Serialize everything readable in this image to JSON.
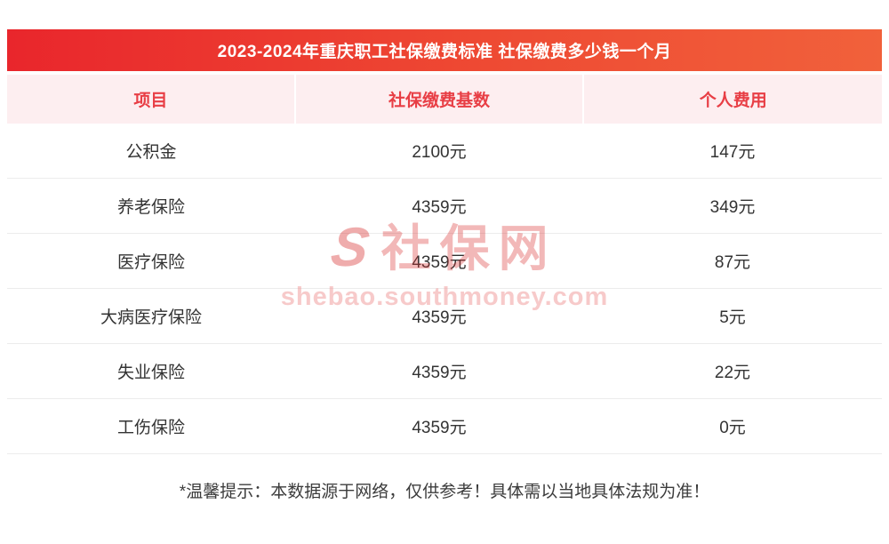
{
  "chart_data": {
    "type": "table",
    "title": "2023-2024年重庆职工社保缴费标准 社保缴费多少钱一个月",
    "columns": [
      "项目",
      "社保缴费基数",
      "个人费用"
    ],
    "rows": [
      [
        "公积金",
        "2100元",
        "147元"
      ],
      [
        "养老保险",
        "4359元",
        "349元"
      ],
      [
        "医疗保险",
        "4359元",
        "87元"
      ],
      [
        "大病医疗保险",
        "4359元",
        "5元"
      ],
      [
        "失业保险",
        "4359元",
        "22元"
      ],
      [
        "工伤保险",
        "4359元",
        "0元"
      ]
    ]
  },
  "watermark": {
    "logo_glyph": "S",
    "logo_text": "社保网",
    "url": "shebao.southmoney.com"
  },
  "footnote": "*温馨提示：本数据源于网络，仅供参考！具体需以当地具体法规为准！",
  "colors": {
    "title_gradient_start": "#e9262c",
    "title_gradient_end": "#f1613b",
    "header_bg": "#fdeef0",
    "header_text": "#e83e45",
    "row_divider": "#ececec"
  }
}
